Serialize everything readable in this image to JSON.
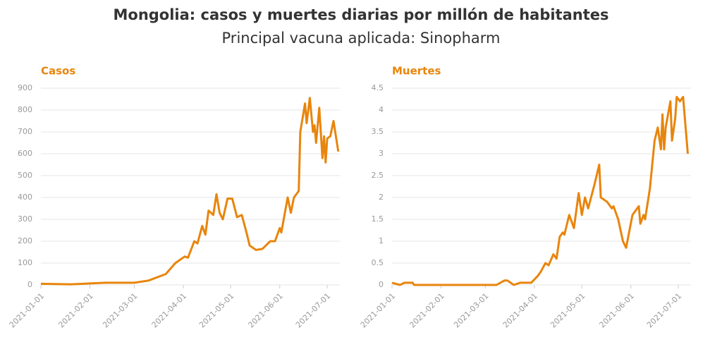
{
  "title": "Mongolia: casos y muertes diarias por millón de habitantes",
  "subtitle": "Principal vacuna aplicada: Sinopharm",
  "chart_data": [
    {
      "type": "line",
      "title": "Casos",
      "color": "#e8850c",
      "grid": true,
      "xlim": [
        "2021-01-01",
        "2021-07-09"
      ],
      "xticks": [
        "2021-01-01",
        "2021-02-01",
        "2021-03-01",
        "2021-04-01",
        "2021-05-01",
        "2021-06-01",
        "2021-07-01"
      ],
      "ylim": [
        0,
        900
      ],
      "yticks": [
        0,
        100,
        200,
        300,
        400,
        500,
        600,
        700,
        800,
        900
      ],
      "x": [
        "2021-01-01",
        "2021-01-20",
        "2021-02-11",
        "2021-03-01",
        "2021-03-10",
        "2021-03-21",
        "2021-03-27",
        "2021-04-02",
        "2021-04-04",
        "2021-04-08",
        "2021-04-10",
        "2021-04-13",
        "2021-04-15",
        "2021-04-17",
        "2021-04-20",
        "2021-04-22",
        "2021-04-24",
        "2021-04-26",
        "2021-04-29",
        "2021-05-02",
        "2021-05-05",
        "2021-05-08",
        "2021-05-11",
        "2021-05-13",
        "2021-05-17",
        "2021-05-21",
        "2021-05-26",
        "2021-05-29",
        "2021-06-01",
        "2021-06-02",
        "2021-06-04",
        "2021-06-06",
        "2021-06-08",
        "2021-06-10",
        "2021-06-13",
        "2021-06-14",
        "2021-06-17",
        "2021-06-18",
        "2021-06-20",
        "2021-06-22",
        "2021-06-23",
        "2021-06-24",
        "2021-06-26",
        "2021-06-28",
        "2021-06-29",
        "2021-06-30",
        "2021-07-01",
        "2021-07-03",
        "2021-07-05",
        "2021-07-08"
      ],
      "values": [
        5,
        3,
        10,
        10,
        20,
        50,
        100,
        130,
        125,
        200,
        190,
        270,
        230,
        340,
        320,
        415,
        330,
        300,
        395,
        395,
        310,
        320,
        240,
        180,
        160,
        165,
        200,
        200,
        260,
        240,
        320,
        400,
        330,
        400,
        430,
        700,
        830,
        740,
        855,
        700,
        730,
        650,
        810,
        580,
        680,
        560,
        670,
        680,
        750,
        610
      ]
    },
    {
      "type": "line",
      "title": "Muertes",
      "color": "#e8850c",
      "grid": true,
      "xlim": [
        "2021-01-01",
        "2021-07-09"
      ],
      "xticks": [
        "2021-01-01",
        "2021-02-01",
        "2021-03-01",
        "2021-04-01",
        "2021-05-01",
        "2021-06-01",
        "2021-07-01"
      ],
      "ylim": [
        0,
        4.5
      ],
      "yticks": [
        0,
        0.5,
        1,
        1.5,
        2,
        2.5,
        3,
        3.5,
        4,
        4.5
      ],
      "x": [
        "2021-01-01",
        "2021-01-06",
        "2021-01-09",
        "2021-01-14",
        "2021-01-15",
        "2021-03-08",
        "2021-03-13",
        "2021-03-15",
        "2021-03-19",
        "2021-03-23",
        "2021-03-30",
        "2021-04-03",
        "2021-04-05",
        "2021-04-08",
        "2021-04-10",
        "2021-04-13",
        "2021-04-15",
        "2021-04-17",
        "2021-04-19",
        "2021-04-20",
        "2021-04-23",
        "2021-04-26",
        "2021-04-29",
        "2021-05-01",
        "2021-05-03",
        "2021-05-05",
        "2021-05-09",
        "2021-05-12",
        "2021-05-13",
        "2021-05-17",
        "2021-05-20",
        "2021-05-21",
        "2021-05-24",
        "2021-05-27",
        "2021-05-29",
        "2021-06-02",
        "2021-06-06",
        "2021-06-07",
        "2021-06-09",
        "2021-06-10",
        "2021-06-13",
        "2021-06-16",
        "2021-06-18",
        "2021-06-20",
        "2021-06-21",
        "2021-06-22",
        "2021-06-23",
        "2021-06-26",
        "2021-06-27",
        "2021-06-29",
        "2021-06-30",
        "2021-07-02",
        "2021-07-04",
        "2021-07-07"
      ],
      "values": [
        0.05,
        0,
        0.05,
        0.05,
        0,
        0,
        0.1,
        0.1,
        0,
        0.05,
        0.05,
        0.2,
        0.3,
        0.5,
        0.45,
        0.7,
        0.6,
        1.1,
        1.2,
        1.15,
        1.6,
        1.3,
        2.1,
        1.6,
        2.0,
        1.75,
        2.3,
        2.75,
        2.0,
        1.9,
        1.75,
        1.8,
        1.5,
        1.0,
        0.85,
        1.6,
        1.8,
        1.4,
        1.6,
        1.5,
        2.2,
        3.3,
        3.6,
        3.1,
        3.9,
        3.1,
        3.6,
        4.2,
        3.3,
        3.8,
        4.3,
        4.2,
        4.3,
        3.0
      ]
    }
  ]
}
